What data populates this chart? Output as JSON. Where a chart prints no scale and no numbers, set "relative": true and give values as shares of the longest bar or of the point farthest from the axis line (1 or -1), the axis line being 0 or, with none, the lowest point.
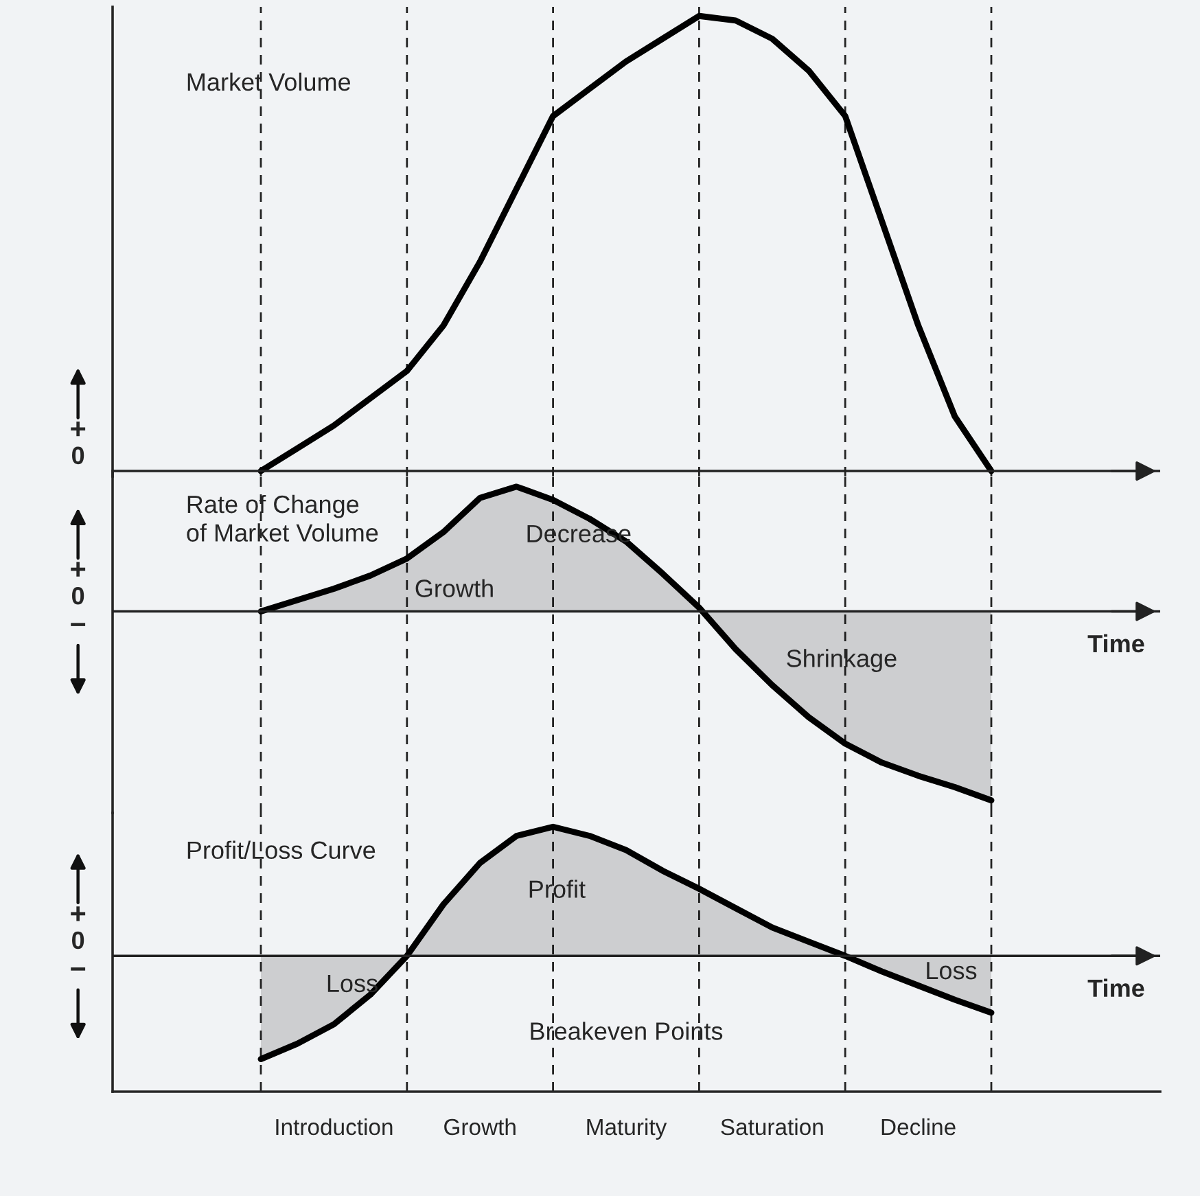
{
  "chart_data": [
    {
      "type": "line",
      "title": "Market Volume",
      "relative": true,
      "legend": false,
      "grid": "x",
      "categories": [
        null,
        null,
        null,
        null,
        null,
        null,
        null,
        null,
        null,
        null,
        null,
        null,
        null,
        null,
        null,
        null,
        null,
        null,
        null,
        null,
        null
      ],
      "annotations": [
        "+",
        "0"
      ],
      "series": [
        {
          "color": "#000000",
          "values": [
            0,
            0.05,
            0.1,
            0.16,
            0.22,
            0.32,
            0.46,
            0.62,
            0.78,
            0.84,
            0.9,
            0.95,
            1.0,
            0.99,
            0.95,
            0.88,
            0.78,
            0.55,
            0.32,
            0.12,
            0
          ]
        }
      ]
    },
    {
      "type": "area",
      "title": "Rate of Change\nof Market Volume",
      "xlabel": "Time",
      "relative": true,
      "legend": false,
      "grid": "x",
      "categories": [
        null,
        null,
        null,
        null,
        null,
        null,
        null,
        null,
        null,
        null,
        null,
        null,
        null,
        null,
        null,
        null,
        null,
        null,
        null,
        null,
        null
      ],
      "annotations": [
        "+",
        "0",
        "−",
        "Growth",
        "Decrease",
        "Shrinkage"
      ],
      "series": [
        {
          "color": "#000000",
          "values": [
            0,
            0.06,
            0.12,
            0.19,
            0.28,
            0.42,
            0.6,
            0.66,
            0.59,
            0.49,
            0.37,
            0.2,
            0.02,
            -0.2,
            -0.39,
            -0.56,
            -0.7,
            -0.8,
            -0.87,
            -0.93,
            -1.0
          ]
        }
      ]
    },
    {
      "type": "area",
      "title": "Profit/Loss Curve",
      "xlabel": "Time",
      "relative": true,
      "legend": false,
      "grid": "x",
      "categories": [
        null,
        null,
        null,
        null,
        null,
        null,
        null,
        null,
        null,
        null,
        null,
        null,
        null,
        null,
        null,
        null,
        null,
        null,
        null,
        null,
        null
      ],
      "annotations": [
        "+",
        "0",
        "−",
        "Loss",
        "Profit",
        "Loss",
        "Breakeven Points",
        "Introduction",
        "Growth",
        "Maturity",
        "Saturation",
        "Decline"
      ],
      "series": [
        {
          "color": "#000000",
          "values": [
            -0.8,
            -0.68,
            -0.53,
            -0.3,
            0.0,
            0.4,
            0.72,
            0.93,
            1.0,
            0.93,
            0.82,
            0.66,
            0.52,
            0.37,
            0.22,
            0.11,
            0.0,
            -0.12,
            -0.23,
            -0.34,
            -0.44
          ]
        }
      ]
    }
  ]
}
